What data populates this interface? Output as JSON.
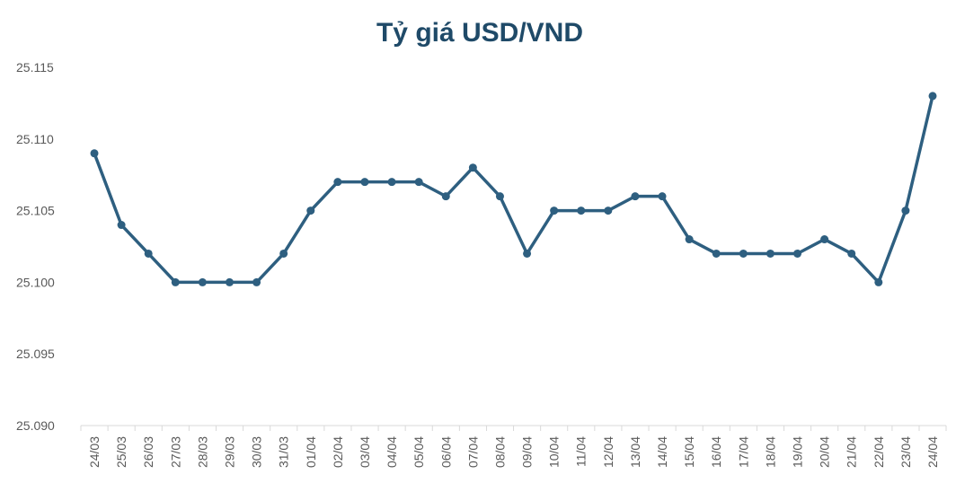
{
  "chart_data": {
    "type": "line",
    "title": "Tỷ giá USD/VND",
    "xlabel": "",
    "ylabel": "",
    "ylim": [
      25.09,
      25.115
    ],
    "yticks": [
      "25.090",
      "25.095",
      "25.100",
      "25.105",
      "25.110",
      "25.115"
    ],
    "grid": false,
    "legend": "none",
    "line_color": "#2e5f80",
    "title_color": "#1f4a68",
    "categories": [
      "24/03",
      "25/03",
      "26/03",
      "27/03",
      "28/03",
      "29/03",
      "30/03",
      "31/03",
      "01/04",
      "02/04",
      "03/04",
      "04/04",
      "05/04",
      "06/04",
      "07/04",
      "08/04",
      "09/04",
      "10/04",
      "11/04",
      "12/04",
      "13/04",
      "14/04",
      "15/04",
      "16/04",
      "17/04",
      "18/04",
      "19/04",
      "20/04",
      "21/04",
      "22/04",
      "23/04",
      "24/04"
    ],
    "series": [
      {
        "name": "USD/VND",
        "values": [
          25.109,
          25.104,
          25.102,
          25.1,
          25.1,
          25.1,
          25.1,
          25.102,
          25.105,
          25.107,
          25.107,
          25.107,
          25.107,
          25.106,
          25.108,
          25.106,
          25.102,
          25.105,
          25.105,
          25.105,
          25.106,
          25.106,
          25.103,
          25.102,
          25.102,
          25.102,
          25.102,
          25.103,
          25.102,
          25.1,
          25.105,
          25.113
        ]
      }
    ]
  }
}
